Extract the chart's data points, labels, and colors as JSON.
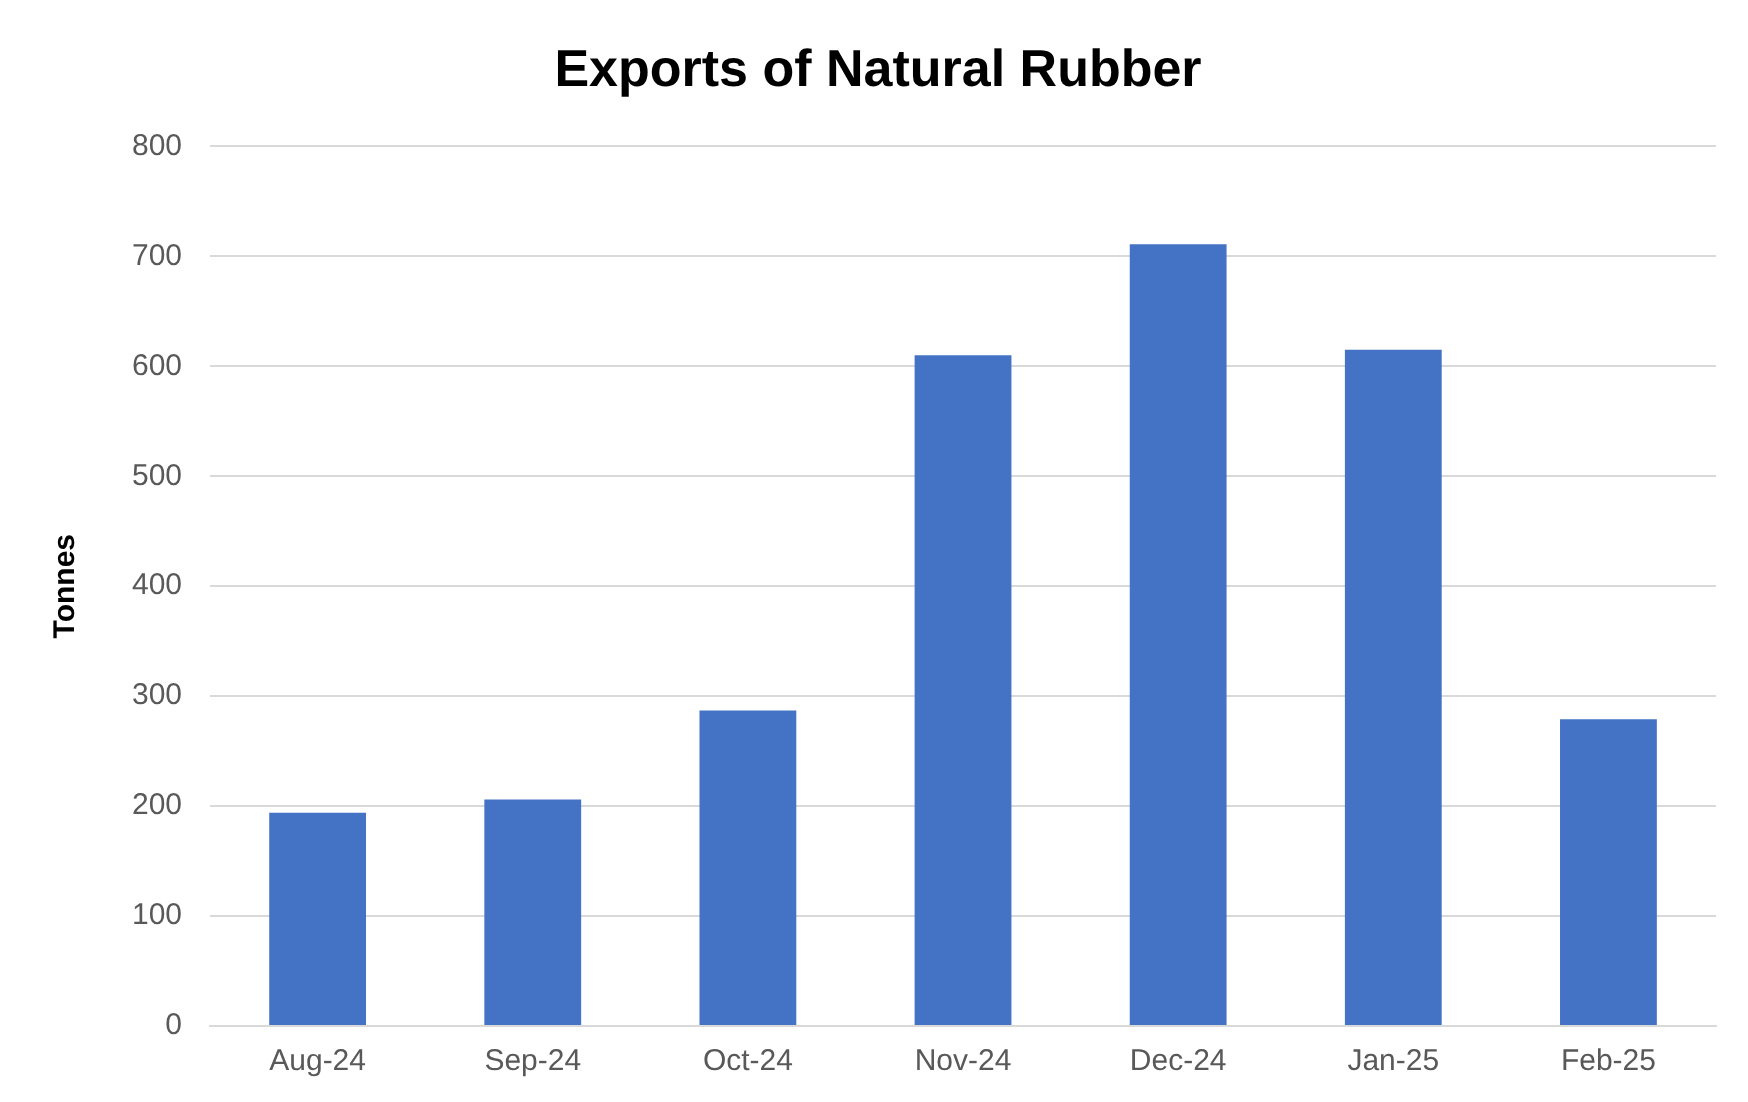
{
  "chart_data": {
    "type": "bar",
    "title": "Exports of Natural Rubber",
    "ylabel": "Tonnes",
    "categories": [
      "Aug-24",
      "Sep-24",
      "Oct-24",
      "Nov-24",
      "Dec-24",
      "Jan-25",
      "Feb-25"
    ],
    "values": [
      194,
      206,
      287,
      610,
      711,
      615,
      279
    ],
    "color": "#4472c4",
    "ylim": [
      0,
      800
    ],
    "yticks": [
      0,
      100,
      200,
      300,
      400,
      500,
      600,
      700,
      800
    ],
    "grid": "y",
    "legend": false
  }
}
